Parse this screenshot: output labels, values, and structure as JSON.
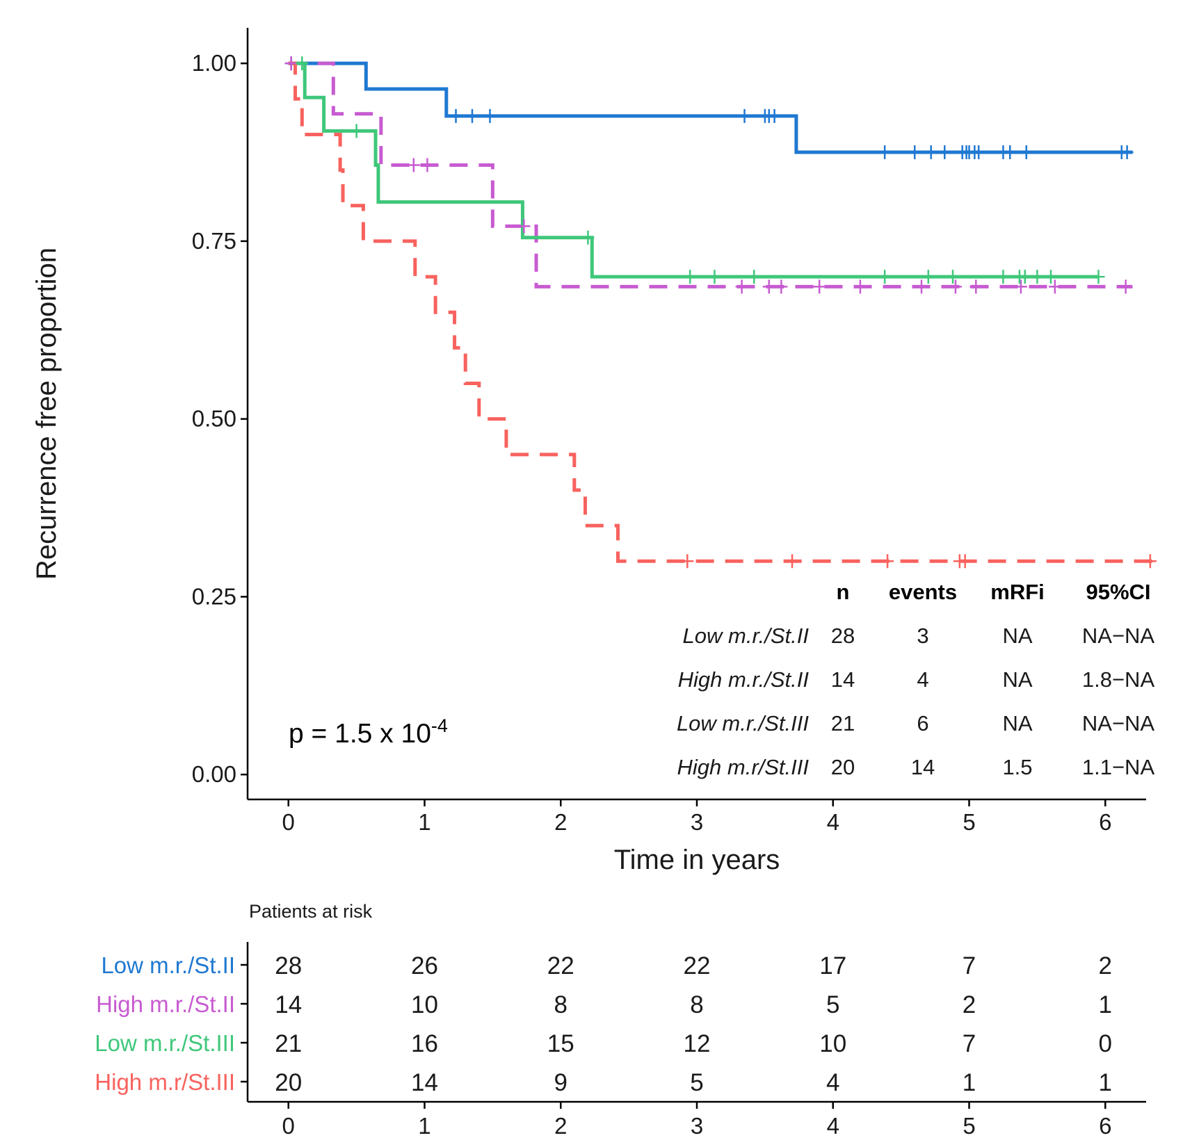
{
  "chart_data": {
    "type": "line",
    "subtype": "kaplan-meier",
    "xlabel": "Time in years",
    "ylabel": "Recurrence free proportion",
    "xlim": [
      -0.3,
      6.3
    ],
    "ylim": [
      -0.035,
      1.05
    ],
    "xticks": [
      "0",
      "1",
      "2",
      "3",
      "4",
      "5",
      "6"
    ],
    "yticks": [
      "0.00",
      "0.25",
      "0.50",
      "0.75",
      "1.00"
    ],
    "grid": false,
    "p_value": {
      "prefix": "p = 1.5 x 10",
      "exponent": "-4"
    },
    "series": [
      {
        "name": "Low m.r./St.II",
        "color": "#1f78d1",
        "dash": "solid",
        "steps": [
          [
            0,
            1.0
          ],
          [
            0.57,
            0.964
          ],
          [
            1.16,
            0.926
          ],
          [
            3.73,
            0.875
          ],
          [
            6.2,
            0.875
          ]
        ],
        "censor": [
          0.02,
          1.23,
          1.35,
          1.48,
          3.35,
          3.5,
          3.53,
          3.57,
          4.38,
          4.6,
          4.72,
          4.82,
          4.95,
          4.98,
          5.0,
          5.04,
          5.07,
          5.25,
          5.3,
          5.42,
          6.12,
          6.16
        ]
      },
      {
        "name": "High m.r./St.II",
        "color": "#c75bd1",
        "dash": "dashed",
        "steps": [
          [
            0,
            1.0
          ],
          [
            0.33,
            0.929
          ],
          [
            0.68,
            0.857
          ],
          [
            1.5,
            0.771
          ],
          [
            1.82,
            0.686
          ],
          [
            6.2,
            0.686
          ]
        ],
        "censor": [
          0.02,
          0.92,
          1.02,
          1.73,
          3.33,
          3.53,
          3.62,
          3.9,
          4.2,
          4.65,
          4.9,
          5.05,
          5.38,
          5.63,
          6.15
        ]
      },
      {
        "name": "Low m.r./St.III",
        "color": "#3fc77a",
        "dash": "solid",
        "steps": [
          [
            0,
            1.0
          ],
          [
            0.12,
            0.952
          ],
          [
            0.26,
            0.905
          ],
          [
            0.64,
            0.857
          ],
          [
            0.66,
            0.805
          ],
          [
            1.72,
            0.755
          ],
          [
            2.23,
            0.7
          ],
          [
            5.95,
            0.7
          ]
        ],
        "censor": [
          0.1,
          0.5,
          2.2,
          2.95,
          3.13,
          3.42,
          4.38,
          4.7,
          4.88,
          5.25,
          5.37,
          5.41,
          5.5,
          5.6,
          5.95
        ]
      },
      {
        "name": "High m.r/St.III",
        "color": "#f8625e",
        "dash": "dashed",
        "steps": [
          [
            0,
            1.0
          ],
          [
            0.05,
            0.95
          ],
          [
            0.1,
            0.9
          ],
          [
            0.38,
            0.85
          ],
          [
            0.4,
            0.8
          ],
          [
            0.55,
            0.75
          ],
          [
            0.93,
            0.7
          ],
          [
            1.08,
            0.65
          ],
          [
            1.22,
            0.6
          ],
          [
            1.3,
            0.55
          ],
          [
            1.4,
            0.5
          ],
          [
            1.6,
            0.45
          ],
          [
            2.1,
            0.4
          ],
          [
            2.18,
            0.35
          ],
          [
            2.42,
            0.3
          ],
          [
            6.35,
            0.3
          ]
        ],
        "censor": [
          2.93,
          3.7,
          4.4,
          4.93,
          4.97,
          6.33
        ]
      }
    ],
    "summary_table": {
      "headers": [
        "n",
        "events",
        "mRFi",
        "95%CI"
      ],
      "rows": [
        {
          "label": "Low m.r./St.II",
          "n": "28",
          "events": "3",
          "mRFi": "NA",
          "ci": "NA−NA"
        },
        {
          "label": "High m.r./St.II",
          "n": "14",
          "events": "4",
          "mRFi": "NA",
          "ci": "1.8−NA"
        },
        {
          "label": "Low m.r./St.III",
          "n": "21",
          "events": "6",
          "mRFi": "NA",
          "ci": "NA−NA"
        },
        {
          "label": "High m.r/St.III",
          "n": "20",
          "events": "14",
          "mRFi": "1.5",
          "ci": "1.1−NA"
        }
      ]
    },
    "risk_table": {
      "title": "Patients at risk",
      "times": [
        "0",
        "1",
        "2",
        "3",
        "4",
        "5",
        "6"
      ],
      "rows": [
        {
          "label": "Low m.r./St.II",
          "color": "#1f78d1",
          "values": [
            "28",
            "26",
            "22",
            "22",
            "17",
            "7",
            "2"
          ]
        },
        {
          "label": "High m.r./St.II",
          "color": "#c75bd1",
          "values": [
            "14",
            "10",
            "8",
            "8",
            "5",
            "2",
            "1"
          ]
        },
        {
          "label": "Low m.r./St.III",
          "color": "#3fc77a",
          "values": [
            "21",
            "16",
            "15",
            "12",
            "10",
            "7",
            "0"
          ]
        },
        {
          "label": "High m.r/St.III",
          "color": "#f8625e",
          "values": [
            "20",
            "14",
            "9",
            "5",
            "4",
            "1",
            "1"
          ]
        }
      ]
    }
  }
}
